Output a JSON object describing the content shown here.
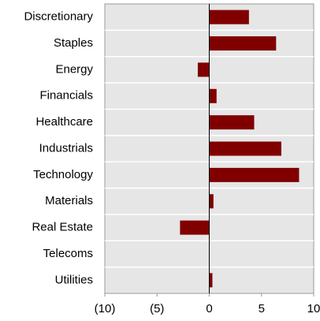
{
  "chart_data": {
    "type": "barh",
    "categories": [
      "Discretionary",
      "Staples",
      "Energy",
      "Financials",
      "Healthcare",
      "Industrials",
      "Technology",
      "Materials",
      "Real Estate",
      "Telecoms",
      "Utilities"
    ],
    "values": [
      3.8,
      6.4,
      -1.1,
      0.7,
      4.3,
      6.9,
      8.6,
      0.4,
      -2.8,
      0,
      0.3
    ],
    "color": "#800000",
    "xlim": [
      -10,
      10
    ],
    "xticks": [
      {
        "value": -10,
        "label": "(10)"
      },
      {
        "value": -5,
        "label": "(5)"
      },
      0,
      5,
      10
    ],
    "negative_tick_color": "#e00000",
    "grid": true
  }
}
